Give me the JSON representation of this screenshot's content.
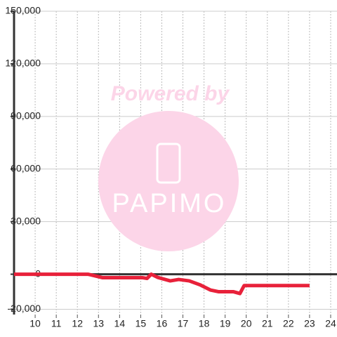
{
  "chart_data": {
    "type": "line",
    "watermark": {
      "line1": "Powered by",
      "line2": "PAPIMO"
    },
    "x": [
      9,
      12.5,
      13.2,
      15.1,
      15.3,
      15.5,
      15.8,
      16.4,
      16.8,
      17.3,
      17.8,
      18.3,
      18.7,
      19.4,
      19.7,
      19.9,
      23
    ],
    "series": [
      {
        "color": "#e8213a",
        "values": [
          0,
          0,
          -2000,
          -2000,
          -2400,
          0,
          -1800,
          -3800,
          -3000,
          -3800,
          -6000,
          -9000,
          -10000,
          -10000,
          -11000,
          -6500,
          -6500
        ]
      }
    ],
    "xlim": [
      9,
      24.3
    ],
    "xticks": [
      10,
      11,
      12,
      13,
      14,
      15,
      16,
      17,
      18,
      19,
      20,
      21,
      22,
      23,
      24
    ],
    "ylim": [
      -23000,
      150000
    ],
    "yticks": [
      {
        "value": -20000,
        "label": "-20,000"
      },
      0,
      {
        "value": 30000,
        "label": "30,000"
      },
      {
        "value": 60000,
        "label": "60,000"
      },
      {
        "value": 90000,
        "label": "90,000"
      },
      {
        "value": 120000,
        "label": "120,000"
      },
      {
        "value": 150000,
        "label": "150,000"
      }
    ],
    "grid": true
  }
}
